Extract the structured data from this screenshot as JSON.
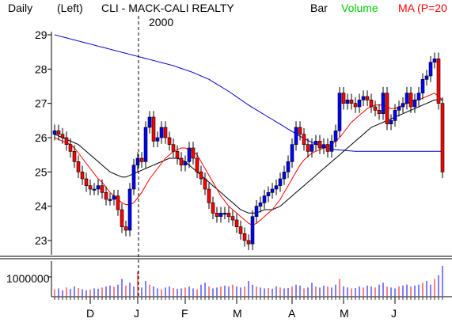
{
  "header": {
    "period": "Daily",
    "axis_side": "(Left)",
    "title": "CLI - MACK-CALI REALTY",
    "bar_label": "Bar",
    "volume_label": "Volume",
    "ma_label": "MA (P=20",
    "year_marker": "2000"
  },
  "colors": {
    "up_bar": "#0000ff",
    "down_bar": "#ff0000",
    "volume_text": "#00cc00",
    "ma_text": "#ff0000",
    "ma_short": "#ff0000",
    "ma_medium": "#000000",
    "ma_long": "#0000cc"
  },
  "chart_data": [
    {
      "type": "candlestick",
      "title": "CLI - MACK-CALI REALTY",
      "ylim": [
        22.75,
        29.2
      ],
      "yticks": [
        "29",
        "28",
        "27",
        "26",
        "25",
        "24",
        "23"
      ],
      "x_month_labels": [
        {
          "label": "D",
          "index": 9
        },
        {
          "label": "J",
          "index": 21
        },
        {
          "label": "F",
          "index": 33
        },
        {
          "label": "M",
          "index": 46
        },
        {
          "label": "A",
          "index": 60
        },
        {
          "label": "M",
          "index": 73
        },
        {
          "label": "J",
          "index": 86
        }
      ],
      "year_marker_index": 21,
      "close": [
        26.2,
        26.1,
        26.0,
        25.8,
        25.6,
        25.3,
        25.0,
        24.8,
        24.6,
        24.5,
        24.5,
        24.6,
        24.4,
        24.2,
        24.2,
        24.3,
        23.9,
        23.4,
        23.3,
        24.5,
        25.2,
        25.4,
        25.3,
        26.3,
        26.6,
        25.9,
        26.0,
        26.3,
        26.0,
        25.8,
        25.6,
        25.4,
        25.2,
        25.3,
        25.7,
        25.4,
        25.0,
        24.8,
        24.5,
        24.1,
        23.8,
        23.7,
        23.8,
        23.8,
        23.7,
        23.6,
        23.4,
        23.2,
        23.0,
        22.9,
        23.7,
        24.0,
        24.1,
        24.3,
        24.4,
        24.5,
        24.6,
        24.8,
        25.0,
        25.3,
        25.8,
        26.3,
        26.1,
        25.8,
        25.6,
        25.8,
        25.9,
        25.7,
        25.8,
        25.6,
        25.9,
        26.2,
        27.3,
        27.0,
        27.1,
        27.0,
        26.9,
        27.1,
        27.2,
        27.1,
        26.9,
        26.8,
        26.7,
        27.3,
        26.4,
        26.5,
        26.8,
        26.9,
        27.0,
        27.3,
        26.9,
        27.1,
        27.3,
        27.7,
        27.8,
        28.2,
        28.3,
        27.0,
        25.0
      ],
      "ma_windows": [
        "20",
        "50",
        "200"
      ],
      "ma20": [
        26.0,
        25.95,
        25.9,
        25.85,
        25.8,
        25.7,
        25.55,
        25.4,
        25.25,
        25.1,
        24.95,
        24.8,
        24.7,
        24.55,
        24.4,
        24.3,
        24.2,
        24.1,
        24.05,
        24.05,
        24.1,
        24.25,
        24.4,
        24.6,
        24.8,
        24.95,
        25.1,
        25.25,
        25.4,
        25.5,
        25.6,
        25.65,
        25.7,
        25.7,
        25.65,
        25.6,
        25.5,
        25.3,
        25.1,
        24.9,
        24.7,
        24.5,
        24.3,
        24.15,
        24.0,
        23.9,
        23.8,
        23.7,
        23.6,
        23.5,
        23.45,
        23.5,
        23.6,
        23.7,
        23.8,
        23.9,
        24.05,
        24.2,
        24.4,
        24.6,
        24.8,
        25.0,
        25.2,
        25.35,
        25.45,
        25.55,
        25.6,
        25.65,
        25.7,
        25.75,
        25.8,
        25.9,
        26.0,
        26.15,
        26.3,
        26.45,
        26.55,
        26.65,
        26.75,
        26.85,
        26.9,
        26.95,
        26.95,
        26.95,
        26.9,
        26.85,
        26.85,
        26.9,
        26.95,
        27.0,
        27.05,
        27.1,
        27.1,
        27.15,
        27.2,
        27.25,
        27.3,
        27.2,
        27.1
      ],
      "ma50": [
        26.1,
        26.05,
        26.0,
        25.95,
        25.9,
        25.85,
        25.8,
        25.7,
        25.6,
        25.5,
        25.4,
        25.3,
        25.2,
        25.1,
        25.0,
        24.95,
        24.9,
        24.85,
        24.85,
        24.9,
        24.95,
        25.0,
        25.05,
        25.1,
        25.15,
        25.2,
        25.25,
        25.3,
        25.35,
        25.4,
        25.4,
        25.4,
        25.35,
        25.3,
        25.2,
        25.1,
        25.0,
        24.9,
        24.8,
        24.7,
        24.6,
        24.5,
        24.4,
        24.3,
        24.2,
        24.1,
        24.0,
        23.9,
        23.85,
        23.8,
        23.8,
        23.8,
        23.85,
        23.9,
        23.9,
        23.9,
        23.95,
        24.0,
        24.1,
        24.2,
        24.3,
        24.4,
        24.5,
        24.6,
        24.7,
        24.8,
        24.9,
        25.0,
        25.1,
        25.2,
        25.3,
        25.4,
        25.5,
        25.6,
        25.7,
        25.8,
        25.9,
        26.0,
        26.1,
        26.2,
        26.3,
        26.35,
        26.4,
        26.45,
        26.5,
        26.55,
        26.6,
        26.65,
        26.7,
        26.75,
        26.8,
        26.85,
        26.9,
        26.95,
        27.0,
        27.05,
        27.1,
        27.1,
        27.1
      ],
      "ma200": [
        29.0,
        28.97,
        28.94,
        28.91,
        28.88,
        28.85,
        28.82,
        28.79,
        28.76,
        28.73,
        28.7,
        28.67,
        28.64,
        28.61,
        28.58,
        28.55,
        28.52,
        28.49,
        28.46,
        28.43,
        28.4,
        28.37,
        28.34,
        28.31,
        28.28,
        28.25,
        28.22,
        28.19,
        28.16,
        28.13,
        28.1,
        28.06,
        28.02,
        27.98,
        27.94,
        27.9,
        27.85,
        27.8,
        27.75,
        27.7,
        27.63,
        27.56,
        27.49,
        27.42,
        27.35,
        27.27,
        27.19,
        27.11,
        27.03,
        26.95,
        26.88,
        26.81,
        26.74,
        26.67,
        26.6,
        26.53,
        26.46,
        26.39,
        26.32,
        26.25,
        26.18,
        26.11,
        26.04,
        25.98,
        25.92,
        25.86,
        25.81,
        25.77,
        25.73,
        25.7,
        25.67,
        25.65,
        25.64,
        25.63,
        25.62,
        25.61,
        25.6,
        25.6,
        25.6,
        25.6,
        25.6,
        25.6,
        25.6,
        25.6,
        25.6,
        25.6,
        25.6,
        25.6,
        25.6,
        25.6,
        25.6,
        25.6,
        25.6,
        25.6,
        25.6,
        25.6,
        25.6,
        25.6,
        25.6
      ]
    },
    {
      "type": "bar",
      "title": "Volume",
      "ylabel_tick": "1000000",
      "values": [
        0.35,
        0.4,
        0.3,
        0.45,
        0.38,
        0.5,
        0.42,
        0.36,
        0.3,
        0.33,
        0.4,
        0.38,
        0.45,
        0.5,
        0.55,
        0.48,
        0.6,
        0.9,
        0.55,
        0.7,
        0.5,
        1.3,
        0.45,
        0.8,
        0.6,
        0.5,
        0.4,
        0.35,
        0.45,
        0.5,
        0.42,
        0.38,
        0.4,
        0.45,
        0.5,
        0.4,
        0.35,
        0.6,
        0.7,
        0.5,
        0.4,
        0.45,
        0.5,
        0.55,
        0.5,
        0.6,
        0.5,
        0.45,
        0.5,
        0.8,
        0.6,
        0.5,
        0.45,
        0.4,
        0.42,
        0.38,
        0.5,
        0.45,
        0.4,
        0.42,
        0.5,
        0.6,
        0.55,
        0.4,
        0.45,
        0.7,
        0.5,
        0.45,
        0.55,
        0.5,
        0.45,
        0.6,
        0.9,
        0.5,
        0.45,
        0.4,
        0.42,
        0.5,
        0.45,
        0.55,
        0.5,
        0.45,
        0.6,
        0.7,
        0.5,
        0.45,
        0.4,
        0.5,
        0.55,
        0.6,
        0.5,
        0.55,
        0.6,
        0.7,
        0.8,
        0.6,
        0.9,
        1.1,
        1.6
      ],
      "ylim": [
        0,
        1.6
      ]
    }
  ]
}
